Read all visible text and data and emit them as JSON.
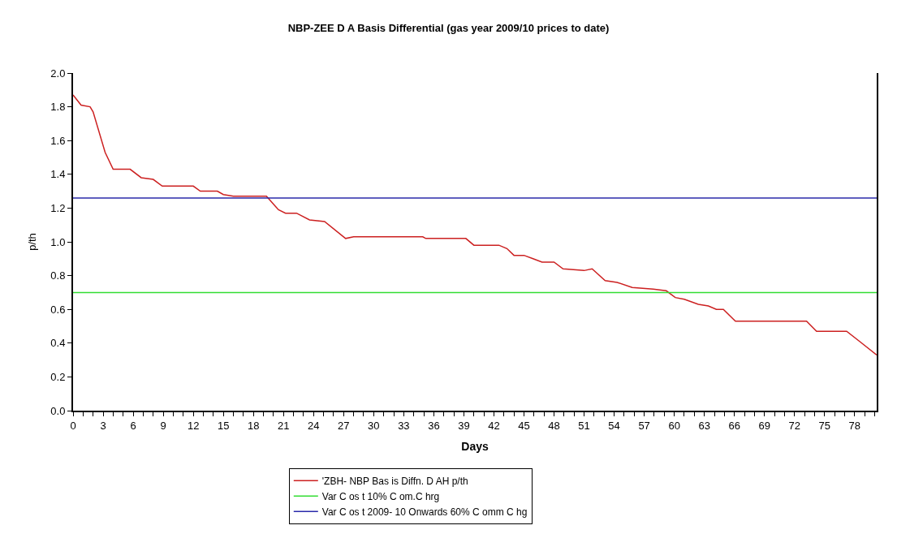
{
  "chart_data": {
    "type": "line",
    "title": "NBP-ZEE D A Basis Differential (gas year 2009/10 prices to date)",
    "xlabel": "Days",
    "ylabel": "p/th",
    "series": [
      {
        "name": "'ZBH- NBP Bas is Diffn. D AH p/th",
        "color": "#cc2020",
        "x": [
          0,
          0.8,
          1.7,
          2,
          3.2,
          4,
          4.7,
          5.7,
          6.8,
          8,
          8.9,
          12,
          12.7,
          14.4,
          15,
          16,
          19.3,
          20.5,
          21.2,
          22.3,
          23.6,
          25.1,
          27.2,
          28,
          34.9,
          35.2,
          39.2,
          40,
          42.5,
          43.3,
          44,
          45,
          45.9,
          46.8,
          48,
          48.9,
          51,
          51.8,
          53.1,
          54.3,
          55.8,
          57.9,
          59.2,
          60.1,
          61,
          62.4,
          63.4,
          64.2,
          64.9,
          66.1,
          73.2,
          74.2,
          77.2,
          78.5,
          80.2
        ],
        "values": [
          1.87,
          1.81,
          1.8,
          1.77,
          1.53,
          1.43,
          1.43,
          1.43,
          1.38,
          1.37,
          1.33,
          1.33,
          1.3,
          1.3,
          1.28,
          1.27,
          1.27,
          1.19,
          1.17,
          1.17,
          1.13,
          1.12,
          1.02,
          1.03,
          1.03,
          1.02,
          1.02,
          0.98,
          0.98,
          0.96,
          0.92,
          0.92,
          0.9,
          0.88,
          0.88,
          0.84,
          0.83,
          0.84,
          0.77,
          0.76,
          0.73,
          0.72,
          0.71,
          0.67,
          0.66,
          0.63,
          0.62,
          0.6,
          0.6,
          0.53,
          0.53,
          0.47,
          0.47,
          0.41,
          0.33
        ]
      },
      {
        "name": "Var C os t 10% C om.C hrg",
        "color": "#33dd33",
        "x": [
          0,
          80.2
        ],
        "values": [
          0.7,
          0.7
        ]
      },
      {
        "name": "Var C os t 2009- 10 Onwards 60% C omm C hg",
        "color": "#2a2aaa",
        "x": [
          0,
          80.2
        ],
        "values": [
          1.26,
          1.26
        ]
      }
    ],
    "xlim": [
      0,
      80.2
    ],
    "xticks": [
      0,
      {
        "value": 1,
        "label": null
      },
      {
        "value": 2,
        "label": null
      },
      3,
      {
        "value": 4,
        "label": null
      },
      {
        "value": 5,
        "label": null
      },
      6,
      {
        "value": 7,
        "label": null
      },
      {
        "value": 8,
        "label": null
      },
      9,
      {
        "value": 10,
        "label": null
      },
      {
        "value": 11,
        "label": null
      },
      12,
      {
        "value": 13,
        "label": null
      },
      {
        "value": 14,
        "label": null
      },
      15,
      {
        "value": 16,
        "label": null
      },
      {
        "value": 17,
        "label": null
      },
      18,
      {
        "value": 19,
        "label": null
      },
      {
        "value": 20,
        "label": null
      },
      21,
      {
        "value": 22,
        "label": null
      },
      {
        "value": 23,
        "label": null
      },
      24,
      {
        "value": 25,
        "label": null
      },
      {
        "value": 26,
        "label": null
      },
      27,
      {
        "value": 28,
        "label": null
      },
      {
        "value": 29,
        "label": null
      },
      30,
      {
        "value": 31,
        "label": null
      },
      {
        "value": 32,
        "label": null
      },
      33,
      {
        "value": 34,
        "label": null
      },
      {
        "value": 35,
        "label": null
      },
      36,
      {
        "value": 37,
        "label": null
      },
      {
        "value": 38,
        "label": null
      },
      39,
      {
        "value": 40,
        "label": null
      },
      {
        "value": 41,
        "label": null
      },
      42,
      {
        "value": 43,
        "label": null
      },
      {
        "value": 44,
        "label": null
      },
      45,
      {
        "value": 46,
        "label": null
      },
      {
        "value": 47,
        "label": null
      },
      48,
      {
        "value": 49,
        "label": null
      },
      {
        "value": 50,
        "label": null
      },
      51,
      {
        "value": 52,
        "label": null
      },
      {
        "value": 53,
        "label": null
      },
      54,
      {
        "value": 55,
        "label": null
      },
      {
        "value": 56,
        "label": null
      },
      57,
      {
        "value": 58,
        "label": null
      },
      {
        "value": 59,
        "label": null
      },
      60,
      {
        "value": 61,
        "label": null
      },
      {
        "value": 62,
        "label": null
      },
      63,
      {
        "value": 64,
        "label": null
      },
      {
        "value": 65,
        "label": null
      },
      66,
      {
        "value": 67,
        "label": null
      },
      {
        "value": 68,
        "label": null
      },
      69,
      {
        "value": 70,
        "label": null
      },
      {
        "value": 71,
        "label": null
      },
      72,
      {
        "value": 73,
        "label": null
      },
      {
        "value": 74,
        "label": null
      },
      75,
      {
        "value": 76,
        "label": null
      },
      {
        "value": 77,
        "label": null
      },
      78,
      {
        "value": 79,
        "label": null
      },
      {
        "value": 80,
        "label": null
      }
    ],
    "ylim": [
      0,
      2
    ],
    "yticks": [
      {
        "value": 0,
        "label": "0.0"
      },
      0.2,
      0.4,
      0.6,
      0.8,
      {
        "value": 1,
        "label": "1.0"
      },
      1.2,
      1.4,
      1.6,
      1.8,
      {
        "value": 2,
        "label": "2.0"
      }
    ],
    "legend": "bottom",
    "marker": "none",
    "line_style": "solid"
  }
}
